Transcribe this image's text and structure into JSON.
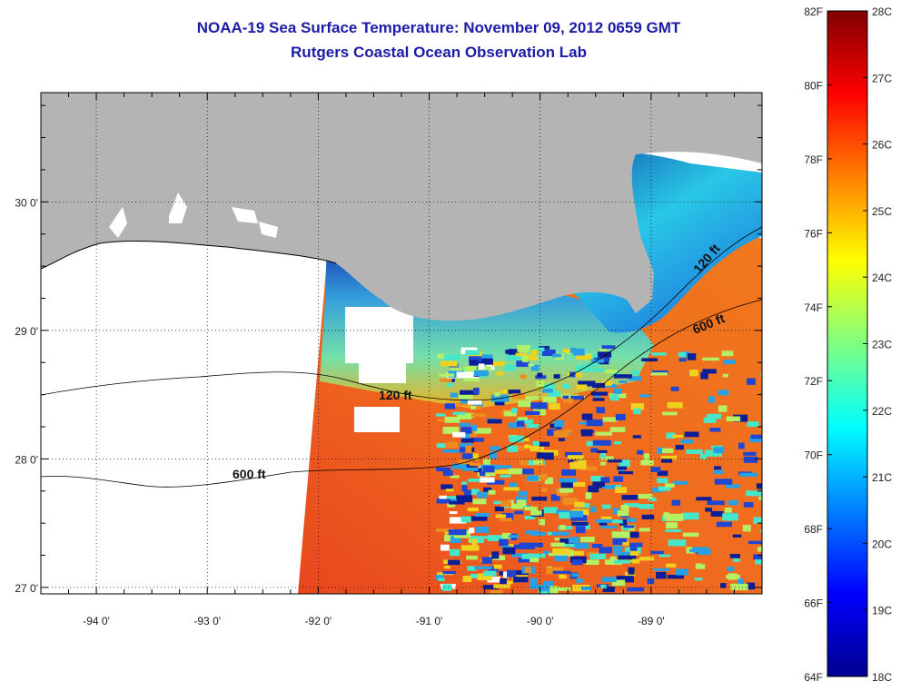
{
  "header": {
    "title_line1": "NOAA-19 Sea Surface Temperature:  November 09, 2012 0659 GMT",
    "title_line2": "Rutgers Coastal Ocean Observation Lab"
  },
  "map": {
    "lon_range": [
      -94.5,
      -88.0
    ],
    "lat_range": [
      26.95,
      30.85
    ],
    "lon_ticks": [
      {
        "value": -94,
        "label": "-94 0'"
      },
      {
        "value": -93,
        "label": "-93 0'"
      },
      {
        "value": -92,
        "label": "-92 0'"
      },
      {
        "value": -91,
        "label": "-91 0'"
      },
      {
        "value": -90,
        "label": "-90 0'"
      },
      {
        "value": -89,
        "label": "-89 0'"
      }
    ],
    "lat_ticks": [
      {
        "value": 30,
        "label": "30 0'"
      },
      {
        "value": 29,
        "label": "29 0'"
      },
      {
        "value": 28,
        "label": "28 0'"
      },
      {
        "value": 27,
        "label": "27 0'"
      }
    ],
    "contours": [
      {
        "label": "120 ft"
      },
      {
        "label": "600 ft"
      },
      {
        "label": "120 ft"
      },
      {
        "label": "600 ft"
      }
    ],
    "colors": {
      "land": "#b4b4b4",
      "no_data": "#ffffff",
      "warm_water": "#f05a1e",
      "cold_water": "#0a1e96"
    }
  },
  "colorbar": {
    "range_c": [
      18,
      28
    ],
    "range_f": [
      64,
      82
    ],
    "f_labels": [
      "82F",
      "80F",
      "78F",
      "76F",
      "74F",
      "72F",
      "70F",
      "68F",
      "66F",
      "64F"
    ],
    "c_labels": [
      "28C",
      "27C",
      "26C",
      "25C",
      "24C",
      "23C",
      "22C",
      "21C",
      "20C",
      "19C",
      "18C"
    ],
    "stops": [
      "#00008f",
      "#0000ff",
      "#0080ff",
      "#00ffff",
      "#80ff80",
      "#ffff00",
      "#ff8000",
      "#ff0000",
      "#800000"
    ]
  }
}
